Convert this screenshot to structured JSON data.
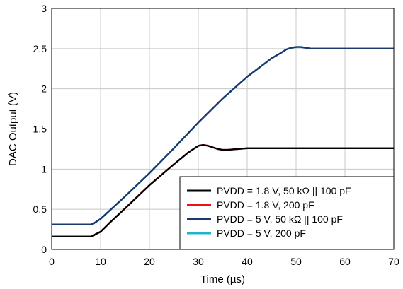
{
  "chart_data": {
    "type": "line",
    "title": "",
    "xlabel": "Time (µs)",
    "ylabel": "DAC Output (V)",
    "xlim": [
      0,
      70
    ],
    "ylim": [
      0,
      3
    ],
    "xticks": [
      0,
      10,
      20,
      30,
      40,
      50,
      60,
      70
    ],
    "yticks": [
      0,
      0.5,
      1,
      1.5,
      2,
      2.5,
      3
    ],
    "xtick_labels": [
      "0",
      "10",
      "20",
      "30",
      "40",
      "50",
      "60",
      "70"
    ],
    "ytick_labels": [
      "0",
      "0.5",
      "1",
      "1.5",
      "2",
      "2.5",
      "3"
    ],
    "grid": true,
    "legend_position": "bottom-right",
    "series": [
      {
        "name": "PVDD = 1.8 V, 50 kΩ || 100 pF",
        "color": "#000000",
        "x": [
          0,
          8,
          8.5,
          9,
          10,
          12,
          15,
          20,
          25,
          28,
          30,
          31,
          32,
          33,
          34,
          35,
          36,
          38,
          40,
          45,
          50,
          60,
          70
        ],
        "y": [
          0.16,
          0.16,
          0.17,
          0.19,
          0.22,
          0.34,
          0.51,
          0.8,
          1.06,
          1.21,
          1.29,
          1.3,
          1.29,
          1.27,
          1.25,
          1.24,
          1.24,
          1.25,
          1.26,
          1.26,
          1.26,
          1.26,
          1.26
        ]
      },
      {
        "name": "PVDD = 1.8 V, 200 pF",
        "color": "#ee1111",
        "x": [
          0,
          8,
          8.5,
          9,
          10,
          12,
          15,
          20,
          25,
          28,
          30,
          31,
          32,
          33,
          34,
          35,
          36,
          38,
          40,
          45,
          50,
          60,
          70
        ],
        "y": [
          0.16,
          0.16,
          0.17,
          0.19,
          0.22,
          0.34,
          0.51,
          0.8,
          1.06,
          1.21,
          1.29,
          1.3,
          1.29,
          1.27,
          1.25,
          1.24,
          1.24,
          1.25,
          1.26,
          1.26,
          1.26,
          1.26,
          1.26
        ]
      },
      {
        "name": "PVDD = 5 V, 50 kΩ || 100 pF",
        "color": "#1a3a6e",
        "x": [
          0,
          8,
          8.5,
          9,
          10,
          15,
          20,
          25,
          30,
          35,
          40,
          45,
          47,
          48,
          49,
          50,
          51,
          52,
          53,
          55,
          60,
          70
        ],
        "y": [
          0.31,
          0.31,
          0.32,
          0.34,
          0.38,
          0.66,
          0.95,
          1.26,
          1.58,
          1.88,
          2.15,
          2.38,
          2.45,
          2.49,
          2.51,
          2.52,
          2.52,
          2.51,
          2.5,
          2.5,
          2.5,
          2.5
        ]
      },
      {
        "name": "PVDD = 5 V, 200 pF",
        "color": "#1fb5c8",
        "x": [
          0,
          8,
          8.5,
          9,
          10,
          15,
          20,
          25,
          30,
          35,
          40,
          45,
          47,
          48,
          49,
          50,
          51,
          52,
          53,
          55,
          60,
          70
        ],
        "y": [
          0.31,
          0.31,
          0.32,
          0.34,
          0.38,
          0.66,
          0.95,
          1.26,
          1.58,
          1.88,
          2.15,
          2.38,
          2.45,
          2.49,
          2.51,
          2.52,
          2.52,
          2.51,
          2.5,
          2.5,
          2.5,
          2.5
        ]
      }
    ]
  }
}
